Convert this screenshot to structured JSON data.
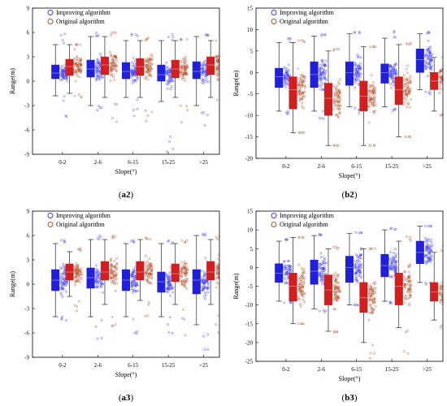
{
  "colors": {
    "improving": "#1f1fdc",
    "original": "#d11f1f",
    "improving_point": "#3b3bff",
    "original_point": "#b5522a",
    "axis": "#000000"
  },
  "chart_data": [
    {
      "panel_id": "a2",
      "type": "boxplot",
      "xlabel": "Slope(°)",
      "ylabel": "Range(m)",
      "categories": [
        "0-2",
        "2-6",
        "6-15",
        "15-25",
        ">25"
      ],
      "ylim": [
        -9,
        9
      ],
      "yticks": [
        -9,
        -6,
        -3,
        0,
        3,
        6,
        9
      ],
      "legend": [
        "Improving algorithm",
        "Original algorithm"
      ],
      "series": [
        {
          "name": "Improving algorithm",
          "color": "#1f1fdc",
          "boxes": [
            {
              "q1": 0.3,
              "q3": 2.0,
              "median": 1.0,
              "whisker_low": -1.8,
              "whisker_high": 4.5,
              "scatter_low": -4.5,
              "scatter_high": 6.0
            },
            {
              "q1": 0.5,
              "q3": 2.6,
              "median": 1.5,
              "whisker_low": -3.0,
              "whisker_high": 5.5,
              "scatter_low": -4.0,
              "scatter_high": 6.0
            },
            {
              "q1": 0.3,
              "q3": 2.3,
              "median": 1.2,
              "whisker_low": -2.0,
              "whisker_high": 5.0,
              "scatter_low": -4.5,
              "scatter_high": 6.0
            },
            {
              "q1": 0.0,
              "q3": 2.0,
              "median": 0.8,
              "whisker_low": -2.5,
              "whisker_high": 5.0,
              "scatter_low": -9.0,
              "scatter_high": 5.8
            },
            {
              "q1": 0.3,
              "q3": 2.4,
              "median": 1.2,
              "whisker_low": -3.0,
              "whisker_high": 5.5,
              "scatter_low": -7.0,
              "scatter_high": 6.0
            }
          ]
        },
        {
          "name": "Original algorithm",
          "color": "#d11f1f",
          "boxes": [
            {
              "q1": 0.7,
              "q3": 2.7,
              "median": 1.8,
              "whisker_low": -1.5,
              "whisker_high": 4.5,
              "scatter_low": -2.0,
              "scatter_high": 4.5
            },
            {
              "q1": 0.8,
              "q3": 3.0,
              "median": 2.0,
              "whisker_low": -2.0,
              "whisker_high": 5.5,
              "scatter_low": -6.0,
              "scatter_high": 6.0
            },
            {
              "q1": 0.7,
              "q3": 2.8,
              "median": 1.8,
              "whisker_low": -2.0,
              "whisker_high": 5.0,
              "scatter_low": -5.0,
              "scatter_high": 5.5
            },
            {
              "q1": 0.4,
              "q3": 2.6,
              "median": 1.5,
              "whisker_low": -2.0,
              "whisker_high": 5.0,
              "scatter_low": -5.5,
              "scatter_high": 5.2
            },
            {
              "q1": 0.8,
              "q3": 3.0,
              "median": 2.0,
              "whisker_low": -2.0,
              "whisker_high": 5.0,
              "scatter_low": -3.5,
              "scatter_high": 5.0
            }
          ]
        }
      ]
    },
    {
      "panel_id": "b2",
      "type": "boxplot",
      "xlabel": "Slope(°)",
      "ylabel": "Range(m)",
      "categories": [
        "0-2",
        "2-6",
        "6-15",
        "15-25",
        ">25"
      ],
      "ylim": [
        -20,
        15
      ],
      "yticks": [
        -20,
        -15,
        -10,
        -5,
        0,
        5,
        10,
        15
      ],
      "legend": [
        "Improving algorithm",
        "Original algorithm"
      ],
      "series": [
        {
          "name": "Improving algorithm",
          "color": "#1f1fdc",
          "boxes": [
            {
              "q1": -3.5,
              "q3": 1.0,
              "median": -1.0,
              "whisker_low": -9.0,
              "whisker_high": 7.0,
              "scatter_low": -10.0,
              "scatter_high": 8.0
            },
            {
              "q1": -3.5,
              "q3": 2.5,
              "median": -0.5,
              "whisker_low": -9.0,
              "whisker_high": 8.5,
              "scatter_low": -11.0,
              "scatter_high": 9.0
            },
            {
              "q1": -3.0,
              "q3": 2.5,
              "median": 0.0,
              "whisker_low": -8.0,
              "whisker_high": 9.0,
              "scatter_low": -10.0,
              "scatter_high": 9.5
            },
            {
              "q1": -2.5,
              "q3": 2.0,
              "median": 0.0,
              "whisker_low": -8.0,
              "whisker_high": 8.0,
              "scatter_low": -9.0,
              "scatter_high": 12.0
            },
            {
              "q1": 0.0,
              "q3": 5.5,
              "median": 3.0,
              "whisker_low": -4.0,
              "whisker_high": 9.0,
              "scatter_low": -5.0,
              "scatter_high": 9.5
            }
          ]
        },
        {
          "name": "Original algorithm",
          "color": "#d11f1f",
          "boxes": [
            {
              "q1": -8.5,
              "q3": -1.0,
              "median": -4.0,
              "whisker_low": -14.0,
              "whisker_high": 7.0,
              "scatter_low": -14.0,
              "scatter_high": 7.5
            },
            {
              "q1": -10.0,
              "q3": -2.5,
              "median": -6.0,
              "whisker_low": -17.0,
              "whisker_high": 5.0,
              "scatter_low": -17.0,
              "scatter_high": 5.5
            },
            {
              "q1": -9.0,
              "q3": -2.0,
              "median": -5.5,
              "whisker_low": -17.0,
              "whisker_high": 6.0,
              "scatter_low": -17.0,
              "scatter_high": 6.0
            },
            {
              "q1": -7.5,
              "q3": -1.0,
              "median": -4.0,
              "whisker_low": -15.0,
              "whisker_high": 6.5,
              "scatter_low": -15.0,
              "scatter_high": 7.0
            },
            {
              "q1": -4.0,
              "q3": 0.0,
              "median": -2.0,
              "whisker_low": -9.0,
              "whisker_high": 3.5,
              "scatter_low": -15.0,
              "scatter_high": 4.0
            }
          ]
        }
      ]
    },
    {
      "panel_id": "a3",
      "type": "boxplot",
      "xlabel": "Slope(°)",
      "ylabel": "Range(m)",
      "categories": [
        "0-2",
        "2-6",
        "6-15",
        "15-25",
        ">25"
      ],
      "ylim": [
        -9,
        9
      ],
      "yticks": [
        -9,
        -6,
        -3,
        0,
        3,
        6,
        9
      ],
      "legend": [
        "Improving algorithm",
        "Original algorithm"
      ],
      "series": [
        {
          "name": "Improving algorithm",
          "color": "#1f1fdc",
          "boxes": [
            {
              "q1": -0.8,
              "q3": 1.8,
              "median": 0.5,
              "whisker_low": -4.0,
              "whisker_high": 5.0,
              "scatter_low": -4.5,
              "scatter_high": 5.5
            },
            {
              "q1": -0.5,
              "q3": 2.0,
              "median": 0.8,
              "whisker_low": -4.0,
              "whisker_high": 5.5,
              "scatter_low": -7.5,
              "scatter_high": 6.0
            },
            {
              "q1": -0.8,
              "q3": 1.8,
              "median": 0.5,
              "whisker_low": -4.0,
              "whisker_high": 5.0,
              "scatter_low": -7.0,
              "scatter_high": 5.5
            },
            {
              "q1": -1.0,
              "q3": 1.5,
              "median": 0.3,
              "whisker_low": -4.0,
              "whisker_high": 5.0,
              "scatter_low": -8.5,
              "scatter_high": 5.5
            },
            {
              "q1": -1.2,
              "q3": 1.8,
              "median": 0.5,
              "whisker_low": -5.0,
              "whisker_high": 6.0,
              "scatter_low": -9.0,
              "scatter_high": 6.5
            }
          ]
        },
        {
          "name": "Original algorithm",
          "color": "#d11f1f",
          "boxes": [
            {
              "q1": 0.5,
              "q3": 2.5,
              "median": 1.5,
              "whisker_low": -1.5,
              "whisker_high": 4.0,
              "scatter_low": -4.5,
              "scatter_high": 4.5
            },
            {
              "q1": 0.5,
              "q3": 2.8,
              "median": 1.5,
              "whisker_low": -2.5,
              "whisker_high": 5.5,
              "scatter_low": -6.0,
              "scatter_high": 6.0
            },
            {
              "q1": 0.5,
              "q3": 2.8,
              "median": 1.5,
              "whisker_low": -2.0,
              "whisker_high": 5.5,
              "scatter_low": -8.5,
              "scatter_high": 6.0
            },
            {
              "q1": 0.3,
              "q3": 2.5,
              "median": 1.3,
              "whisker_low": -2.5,
              "whisker_high": 5.0,
              "scatter_low": -7.0,
              "scatter_high": 5.5
            },
            {
              "q1": 0.5,
              "q3": 2.8,
              "median": 1.5,
              "whisker_low": -2.5,
              "whisker_high": 5.5,
              "scatter_low": -6.0,
              "scatter_high": 6.0
            }
          ]
        }
      ]
    },
    {
      "panel_id": "b3",
      "type": "boxplot",
      "xlabel": "Slope(°)",
      "ylabel": "Range(m)",
      "categories": [
        "0-2",
        "2-6",
        "6-15",
        "15-25",
        ">25"
      ],
      "ylim": [
        -25,
        15
      ],
      "yticks": [
        -25,
        -20,
        -15,
        -10,
        -5,
        0,
        5,
        10,
        15
      ],
      "legend": [
        "Improving algorithm",
        "Original algorithm"
      ],
      "series": [
        {
          "name": "Improving algorithm",
          "color": "#1f1fdc",
          "boxes": [
            {
              "q1": -4.0,
              "q3": 1.0,
              "median": -1.5,
              "whisker_low": -9.0,
              "whisker_high": 7.0,
              "scatter_low": -9.5,
              "scatter_high": 7.5
            },
            {
              "q1": -4.5,
              "q3": 2.0,
              "median": -1.0,
              "whisker_low": -11.0,
              "whisker_high": 8.5,
              "scatter_low": -12.0,
              "scatter_high": 9.0
            },
            {
              "q1": -4.0,
              "q3": 3.0,
              "median": 0.0,
              "whisker_low": -10.0,
              "whisker_high": 9.0,
              "scatter_low": -10.0,
              "scatter_high": 9.5
            },
            {
              "q1": -2.5,
              "q3": 3.5,
              "median": 0.5,
              "whisker_low": -9.0,
              "whisker_high": 10.0,
              "scatter_low": -10.0,
              "scatter_high": 14.0
            },
            {
              "q1": 1.0,
              "q3": 7.0,
              "median": 4.0,
              "whisker_low": -4.0,
              "whisker_high": 11.0,
              "scatter_low": -5.0,
              "scatter_high": 11.0
            }
          ]
        },
        {
          "name": "Original algorithm",
          "color": "#d11f1f",
          "boxes": [
            {
              "q1": -9.0,
              "q3": -1.5,
              "median": -5.0,
              "whisker_low": -15.0,
              "whisker_high": 8.0,
              "scatter_low": -15.0,
              "scatter_high": 8.0
            },
            {
              "q1": -10.0,
              "q3": -2.0,
              "median": -6.0,
              "whisker_low": -17.0,
              "whisker_high": 5.0,
              "scatter_low": -17.5,
              "scatter_high": 5.5
            },
            {
              "q1": -12.0,
              "q3": -4.0,
              "median": -8.0,
              "whisker_low": -20.0,
              "whisker_high": 5.0,
              "scatter_low": -25.0,
              "scatter_high": 5.0
            },
            {
              "q1": -10.0,
              "q3": -1.5,
              "median": -5.0,
              "whisker_low": -16.0,
              "whisker_high": 7.0,
              "scatter_low": -23.0,
              "scatter_high": 8.5
            },
            {
              "q1": -9.0,
              "q3": -4.0,
              "median": -6.5,
              "whisker_low": -14.0,
              "whisker_high": 4.0,
              "scatter_low": -17.0,
              "scatter_high": 6.0
            }
          ]
        }
      ]
    }
  ],
  "panel_labels": [
    {
      "prefix": "(",
      "id": "a2",
      "suffix": ")"
    },
    {
      "prefix": "(",
      "id": "b2",
      "suffix": ")"
    },
    {
      "prefix": "(",
      "id": "a3",
      "suffix": ")"
    },
    {
      "prefix": "(",
      "id": "b3",
      "suffix": ")"
    }
  ]
}
